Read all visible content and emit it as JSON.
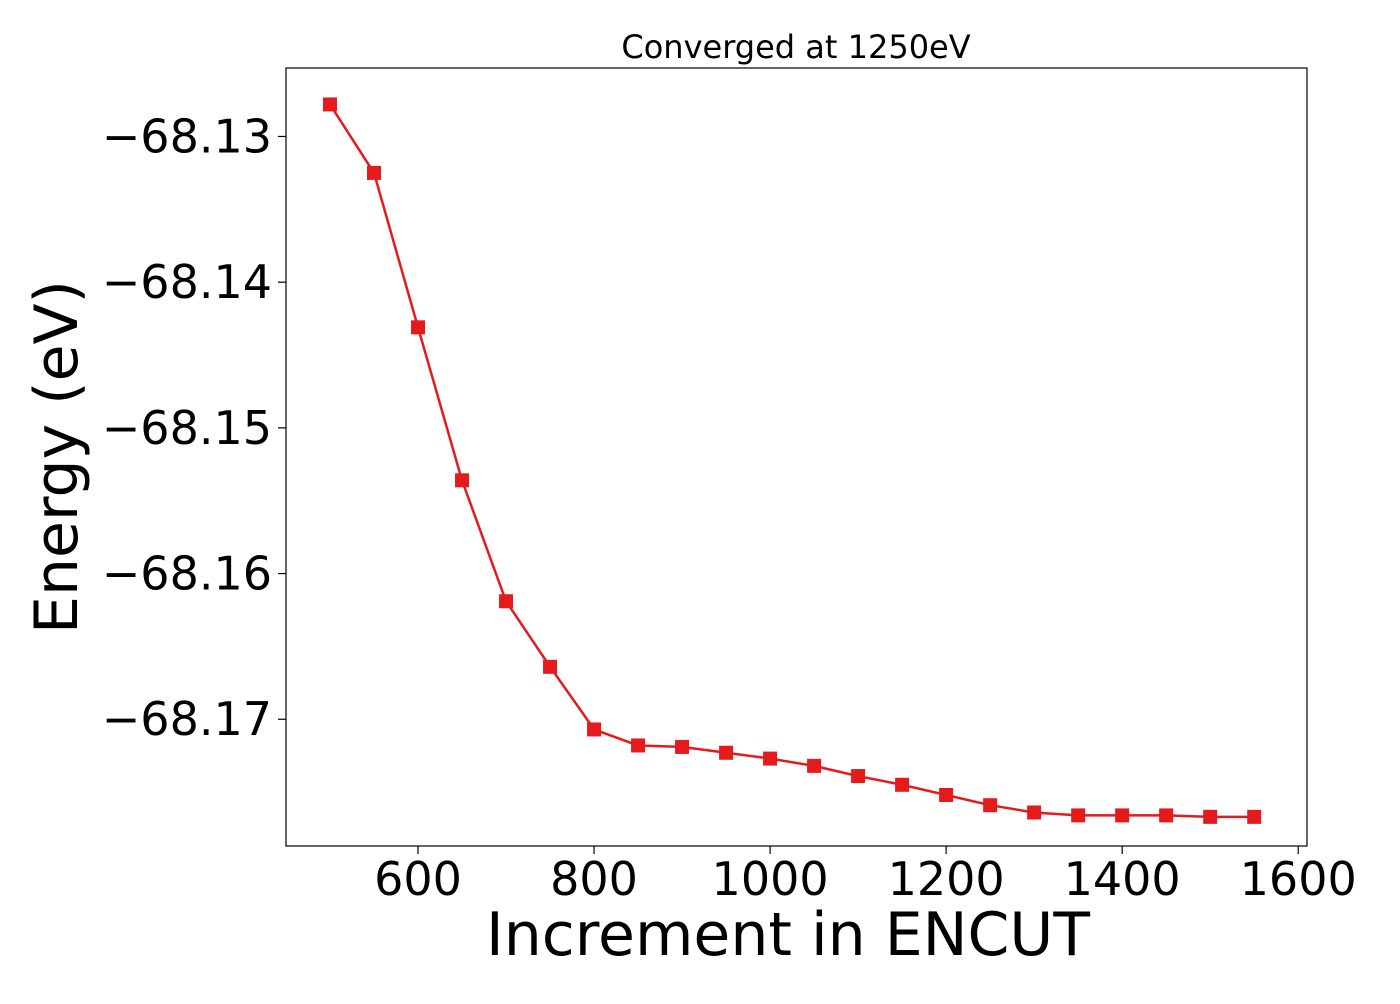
{
  "chart_data": {
    "type": "line",
    "title": "Converged at 1250eV",
    "xlabel": "Increment in ENCUT",
    "ylabel": "Energy (eV)",
    "xlim": [
      450,
      1610
    ],
    "ylim": [
      -68.1787,
      -68.1253
    ],
    "xticks": [
      600,
      800,
      1000,
      1200,
      1400,
      1600
    ],
    "yticks": [
      -68.13,
      -68.14,
      -68.15,
      -68.16,
      -68.17
    ],
    "xtick_labels": [
      "600",
      "800",
      "1000",
      "1200",
      "1400",
      "1600"
    ],
    "ytick_labels": [
      "−68.13",
      "−68.14",
      "−68.15",
      "−68.16",
      "−68.17"
    ],
    "grid": false,
    "marker": "square",
    "series": [
      {
        "color": "#e41a1c",
        "x": [
          500,
          550,
          600,
          650,
          700,
          750,
          800,
          850,
          900,
          950,
          1000,
          1050,
          1100,
          1150,
          1200,
          1250,
          1300,
          1350,
          1400,
          1450,
          1500,
          1550
        ],
        "y": [
          -68.1278,
          -68.1325,
          -68.1431,
          -68.1536,
          -68.1619,
          -68.1664,
          -68.1707,
          -68.1718,
          -68.1719,
          -68.1723,
          -68.1727,
          -68.1732,
          -68.1739,
          -68.1745,
          -68.1752,
          -68.1759,
          -68.1764,
          -68.1766,
          -68.1766,
          -68.1766,
          -68.1767,
          -68.1767
        ]
      }
    ]
  }
}
